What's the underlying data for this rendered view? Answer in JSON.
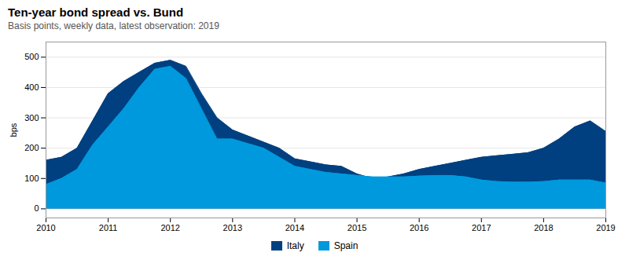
{
  "chart_data": {
    "type": "area",
    "title": "Ten-year bond spread vs. Bund",
    "subtitle": "Basis points, weekly data, latest observation: 2019",
    "ylabel": "bps",
    "x": [
      2010,
      2010.25,
      2010.5,
      2010.75,
      2011,
      2011.25,
      2011.5,
      2011.75,
      2012,
      2012.25,
      2012.5,
      2012.75,
      2013,
      2013.25,
      2013.5,
      2013.75,
      2014,
      2014.25,
      2014.5,
      2014.75,
      2015,
      2015.25,
      2015.5,
      2015.75,
      2016,
      2016.25,
      2016.5,
      2016.75,
      2017,
      2017.25,
      2017.5,
      2017.75,
      2018,
      2018.25,
      2018.5,
      2018.75,
      2019
    ],
    "series": [
      {
        "name": "Italy",
        "color": "#004080",
        "values": [
          160,
          170,
          200,
          290,
          380,
          420,
          450,
          480,
          490,
          470,
          380,
          300,
          260,
          240,
          220,
          200,
          165,
          155,
          145,
          140,
          115,
          100,
          105,
          115,
          130,
          140,
          150,
          160,
          170,
          175,
          180,
          185,
          200,
          230,
          270,
          290,
          255
        ]
      },
      {
        "name": "Spain",
        "color": "#0099dd",
        "values": [
          80,
          100,
          130,
          210,
          270,
          330,
          400,
          460,
          470,
          430,
          330,
          230,
          230,
          215,
          200,
          170,
          140,
          130,
          120,
          115,
          110,
          105,
          105,
          105,
          108,
          110,
          110,
          105,
          95,
          90,
          88,
          88,
          90,
          95,
          95,
          95,
          85
        ]
      }
    ],
    "xlim": [
      2010,
      2019
    ],
    "xticks": [
      2010,
      2011,
      2012,
      2013,
      2014,
      2015,
      2016,
      2017,
      2018,
      2019
    ],
    "ylim": [
      -30,
      550
    ],
    "yticks": [
      0,
      100,
      200,
      300,
      400,
      500
    ],
    "grid": true,
    "legend": "bottom"
  }
}
